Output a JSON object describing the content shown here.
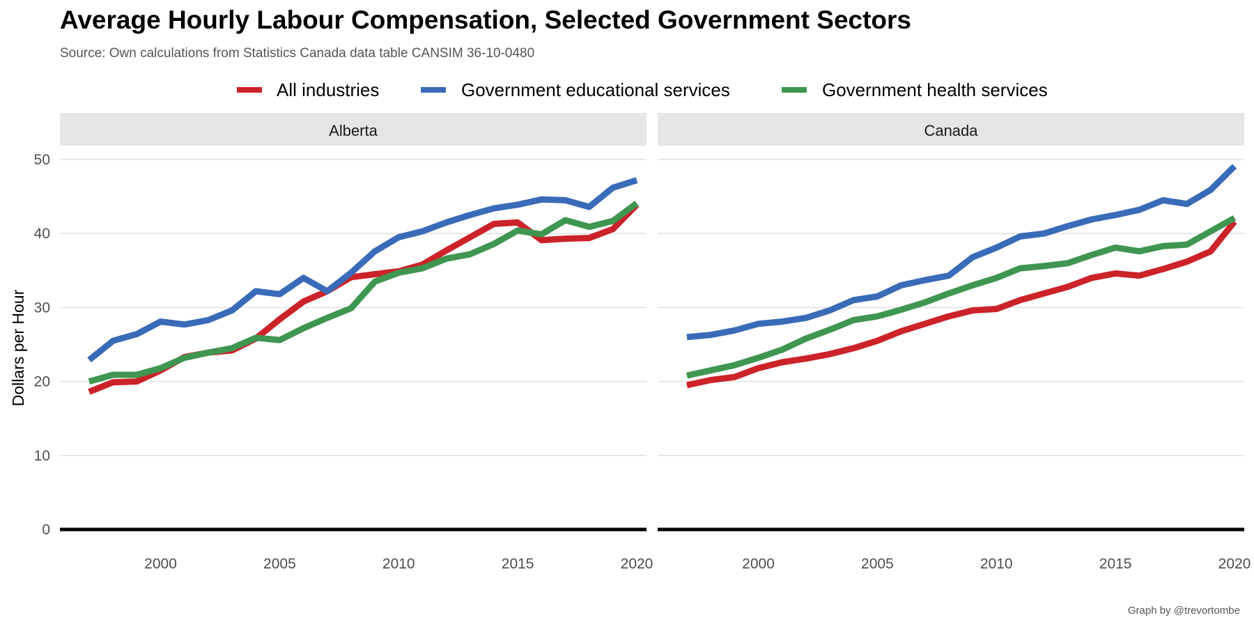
{
  "title": "Average Hourly Labour Compensation, Selected Government Sectors",
  "subtitle": "Source: Own calculations from Statistics Canada data table CANSIM 36-10-0480",
  "caption": "Graph by @trevortombe",
  "chart_data": {
    "type": "line",
    "ylabel": "Dollars per Hour",
    "xlabel": "",
    "ylim": [
      0,
      50
    ],
    "xlim": [
      1997,
      2020
    ],
    "yticks": [
      "0",
      "10",
      "20",
      "30",
      "40",
      "50"
    ],
    "xticks": [
      "2000",
      "2005",
      "2010",
      "2015",
      "2020"
    ],
    "grid": true,
    "legend_position": "top",
    "x": [
      1997,
      1998,
      1999,
      2000,
      2001,
      2002,
      2003,
      2004,
      2005,
      2006,
      2007,
      2008,
      2009,
      2010,
      2011,
      2012,
      2013,
      2014,
      2015,
      2016,
      2017,
      2018,
      2019,
      2020
    ],
    "legend": [
      {
        "name": "All industries",
        "color": "#CC2229"
      },
      {
        "name": "Government educational services",
        "color": "#3A6BB8"
      },
      {
        "name": "Government health services",
        "color": "#3E9650"
      }
    ],
    "panels": [
      {
        "name": "Alberta",
        "series": [
          {
            "name": "All industries",
            "color": "#CC2229",
            "values": [
              18.6,
              19.9,
              20.0,
              21.5,
              23.3,
              23.9,
              24.2,
              25.8,
              28.4,
              30.8,
              32.2,
              34.1,
              34.5,
              34.9,
              35.8,
              37.7,
              39.5,
              41.3,
              41.5,
              39.1,
              39.3,
              39.4,
              40.6,
              43.9
            ]
          },
          {
            "name": "Government educational services",
            "color": "#3A6BB8",
            "values": [
              22.9,
              25.5,
              26.4,
              28.1,
              27.7,
              28.3,
              29.6,
              32.2,
              31.8,
              34.0,
              32.2,
              34.7,
              37.6,
              39.5,
              40.3,
              41.5,
              42.5,
              43.4,
              43.9,
              44.6,
              44.5,
              43.6,
              46.2,
              47.2
            ]
          },
          {
            "name": "Government health services",
            "color": "#3E9650",
            "values": [
              20.0,
              20.9,
              20.9,
              21.8,
              23.2,
              23.9,
              24.5,
              25.9,
              25.6,
              27.2,
              28.6,
              29.9,
              33.5,
              34.7,
              35.3,
              36.6,
              37.2,
              38.6,
              40.4,
              39.9,
              41.8,
              40.9,
              41.7,
              44.1
            ]
          }
        ]
      },
      {
        "name": "Canada",
        "series": [
          {
            "name": "All industries",
            "color": "#CC2229",
            "values": [
              19.5,
              20.2,
              20.6,
              21.8,
              22.6,
              23.1,
              23.7,
              24.5,
              25.5,
              26.8,
              27.8,
              28.8,
              29.6,
              29.8,
              31.0,
              31.9,
              32.8,
              34.0,
              34.6,
              34.3,
              35.2,
              36.2,
              37.6,
              41.6
            ]
          },
          {
            "name": "Government educational services",
            "color": "#3A6BB8",
            "values": [
              26.0,
              26.3,
              26.9,
              27.8,
              28.1,
              28.6,
              29.6,
              31.0,
              31.5,
              33.0,
              33.7,
              34.3,
              36.8,
              38.1,
              39.6,
              40.0,
              41.0,
              41.9,
              42.5,
              43.2,
              44.5,
              44.0,
              45.9,
              49.1
            ]
          },
          {
            "name": "Government health services",
            "color": "#3E9650",
            "values": [
              20.8,
              21.5,
              22.2,
              23.2,
              24.3,
              25.8,
              27.0,
              28.3,
              28.8,
              29.7,
              30.7,
              31.9,
              33.0,
              34.0,
              35.3,
              35.6,
              36.0,
              37.1,
              38.1,
              37.6,
              38.3,
              38.5,
              40.3,
              42.1
            ]
          }
        ]
      }
    ]
  }
}
